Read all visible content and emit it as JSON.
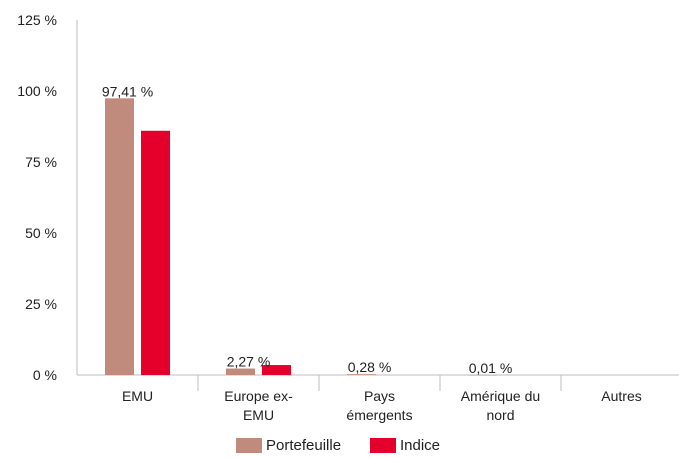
{
  "chart_data": {
    "type": "bar",
    "categories": [
      [
        "EMU"
      ],
      [
        "Europe ex-",
        "EMU"
      ],
      [
        "Pays",
        "émergents"
      ],
      [
        "Amérique du",
        "nord"
      ],
      [
        "Autres"
      ]
    ],
    "series": [
      {
        "name": "Portefeuille",
        "color": "#c08a7c",
        "values": [
          97.41,
          2.27,
          0.28,
          0.01,
          0
        ],
        "data_labels": [
          "97,41 %",
          "2,27 %",
          "0,28 %",
          "0,01 %",
          ""
        ]
      },
      {
        "name": "Indice",
        "color": "#e4002b",
        "values": [
          86,
          3.5,
          0,
          0,
          0
        ],
        "data_labels": [
          "",
          "",
          "",
          "",
          ""
        ]
      }
    ],
    "yticks": [
      0,
      25,
      50,
      75,
      100,
      125
    ],
    "ytick_labels": [
      "0 %",
      "25 %",
      "50 %",
      "75 %",
      "100 %",
      "125 %"
    ],
    "ylim": [
      0,
      125
    ],
    "grid": false,
    "legend_position": "bottom",
    "title": "",
    "xlabel": "",
    "ylabel": ""
  }
}
